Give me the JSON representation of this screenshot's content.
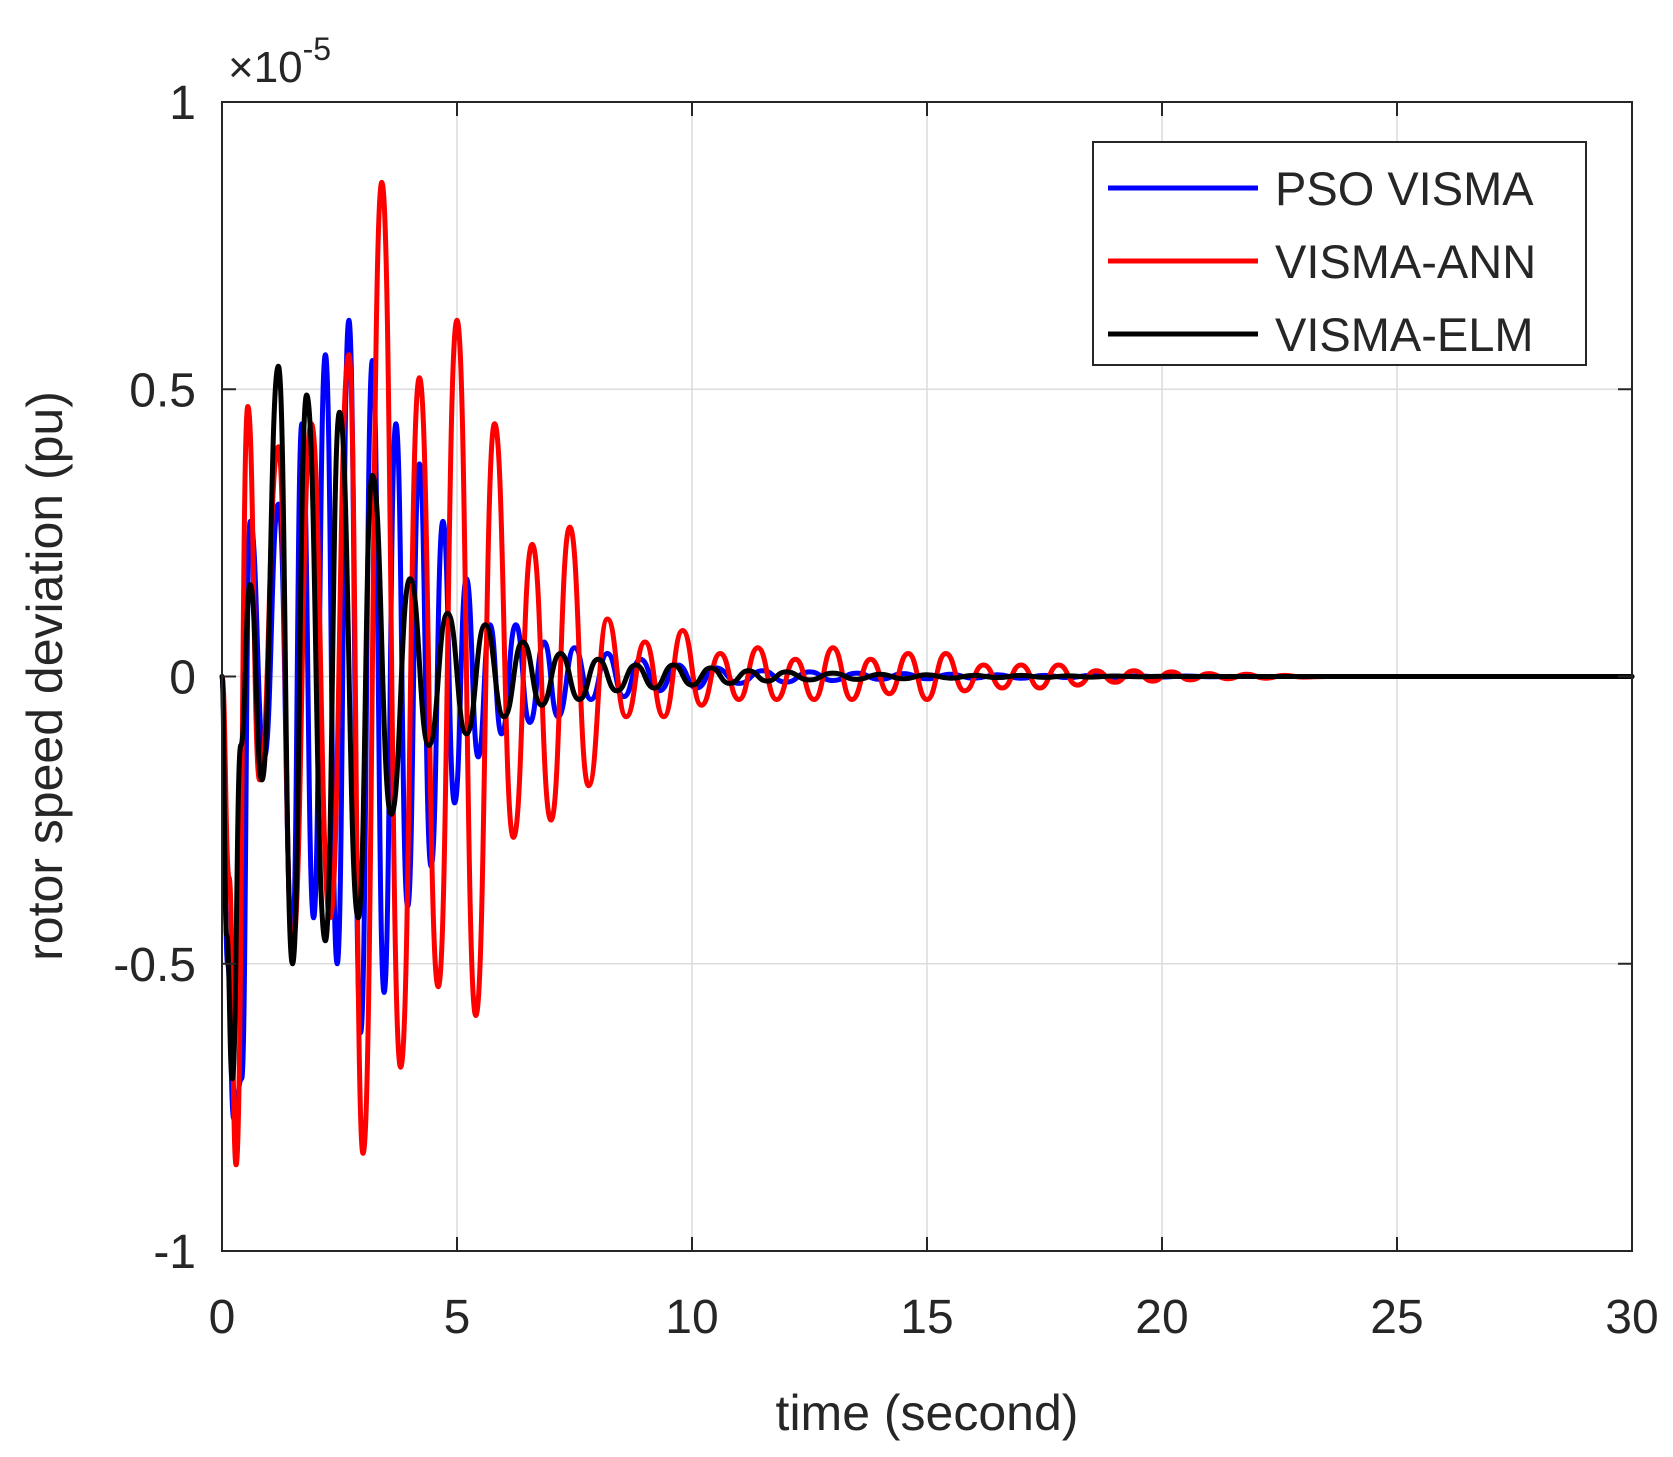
{
  "chart_data": {
    "type": "line",
    "title": "",
    "xlabel": "time (second)",
    "ylabel": "rotor speed deviation (pu)",
    "xlim": [
      0,
      30
    ],
    "ylim": [
      -1,
      1
    ],
    "y_exponent_label": "×10",
    "y_exponent_power": "-5",
    "grid": true,
    "legend_position": "top-right",
    "xticks": [
      {
        "value": 0,
        "label": "0"
      },
      {
        "value": 5,
        "label": "5"
      },
      {
        "value": 10,
        "label": "10"
      },
      {
        "value": 15,
        "label": "15"
      },
      {
        "value": 20,
        "label": "20"
      },
      {
        "value": 25,
        "label": "25"
      },
      {
        "value": 30,
        "label": "30"
      }
    ],
    "yticks": [
      {
        "value": -1,
        "label": "-1"
      },
      {
        "value": -0.5,
        "label": "-0.5"
      },
      {
        "value": 0,
        "label": "0"
      },
      {
        "value": 0.5,
        "label": "0.5"
      },
      {
        "value": 1,
        "label": "1"
      }
    ],
    "series": [
      {
        "name": "PSO VISMA",
        "color": "#0000ff",
        "x": [
          0,
          0.12,
          0.25,
          0.42,
          0.6,
          0.9,
          1.2,
          1.5,
          1.7,
          1.95,
          2.2,
          2.45,
          2.7,
          2.95,
          3.2,
          3.45,
          3.7,
          3.95,
          4.2,
          4.45,
          4.7,
          4.95,
          5.2,
          5.45,
          5.7,
          5.95,
          6.25,
          6.55,
          6.85,
          7.15,
          7.5,
          7.85,
          8.2,
          8.55,
          8.9,
          9.3,
          9.7,
          10.1,
          10.5,
          11,
          11.5,
          12,
          12.5,
          13,
          13.5,
          14,
          14.5,
          15,
          15.5,
          16,
          16.5,
          17,
          17.5,
          18,
          18.5,
          19,
          19.5,
          20,
          20.5,
          21,
          21.5,
          30
        ],
        "values": [
          0,
          -0.5,
          -0.77,
          -0.7,
          0.27,
          -0.14,
          0.3,
          -0.45,
          0.44,
          -0.42,
          0.56,
          -0.5,
          0.62,
          -0.62,
          0.55,
          -0.55,
          0.44,
          -0.4,
          0.37,
          -0.33,
          0.27,
          -0.22,
          0.17,
          -0.14,
          0.09,
          -0.1,
          0.09,
          -0.08,
          0.06,
          -0.07,
          0.05,
          -0.04,
          0.04,
          -0.035,
          0.03,
          -0.025,
          0.02,
          -0.02,
          0.015,
          -0.012,
          0.01,
          -0.01,
          0.008,
          -0.007,
          0.006,
          -0.005,
          0.005,
          -0.004,
          0.004,
          -0.003,
          0.003,
          -0.003,
          0.002,
          -0.002,
          0.002,
          -0.0015,
          0.001,
          -0.001,
          0.0008,
          -0.0005,
          0,
          0
        ]
      },
      {
        "name": "VISMA-ANN",
        "color": "#ff0000",
        "x": [
          0,
          0.15,
          0.3,
          0.55,
          0.8,
          1.2,
          1.5,
          1.9,
          2.3,
          2.7,
          3.0,
          3.4,
          3.8,
          4.2,
          4.6,
          5.0,
          5.4,
          5.8,
          6.2,
          6.6,
          7.0,
          7.4,
          7.8,
          8.2,
          8.6,
          9.0,
          9.4,
          9.8,
          10.2,
          10.6,
          11.0,
          11.4,
          11.8,
          12.2,
          12.6,
          13.0,
          13.4,
          13.8,
          14.2,
          14.6,
          15.0,
          15.4,
          15.8,
          16.2,
          16.6,
          17.0,
          17.4,
          17.8,
          18.2,
          18.6,
          19.0,
          19.4,
          19.8,
          20.2,
          20.6,
          21.0,
          21.4,
          21.8,
          22.2,
          22.6,
          23.0,
          23.5,
          30
        ],
        "values": [
          0,
          -0.35,
          -0.85,
          0.47,
          -0.18,
          0.4,
          -0.47,
          0.44,
          -0.42,
          0.56,
          -0.83,
          0.86,
          -0.68,
          0.52,
          -0.54,
          0.62,
          -0.59,
          0.44,
          -0.28,
          0.23,
          -0.25,
          0.26,
          -0.19,
          0.1,
          -0.07,
          0.06,
          -0.07,
          0.08,
          -0.05,
          0.04,
          -0.04,
          0.05,
          -0.04,
          0.03,
          -0.04,
          0.05,
          -0.04,
          0.03,
          -0.03,
          0.04,
          -0.04,
          0.04,
          -0.025,
          0.02,
          -0.02,
          0.02,
          -0.02,
          0.02,
          -0.015,
          0.01,
          -0.01,
          0.01,
          -0.008,
          0.008,
          -0.006,
          0.005,
          -0.004,
          0.004,
          -0.003,
          0.002,
          -0.001,
          0,
          0
        ]
      },
      {
        "name": "VISMA-ELM",
        "color": "#000000",
        "x": [
          0,
          0.1,
          0.22,
          0.4,
          0.6,
          0.85,
          1.2,
          1.5,
          1.8,
          2.2,
          2.5,
          2.9,
          3.2,
          3.6,
          4.0,
          4.4,
          4.8,
          5.2,
          5.6,
          6.0,
          6.4,
          6.8,
          7.2,
          7.6,
          8.0,
          8.4,
          8.8,
          9.2,
          9.6,
          10.0,
          10.4,
          10.8,
          11.2,
          11.6,
          12.0,
          12.5,
          13.0,
          13.5,
          14.0,
          14.5,
          15.0,
          15.5,
          16.0,
          16.5,
          17.0,
          17.5,
          18.0,
          18.5,
          19.0,
          19.5,
          20.0,
          20.5,
          21.0,
          30
        ],
        "values": [
          0,
          -0.45,
          -0.7,
          -0.12,
          0.16,
          -0.18,
          0.54,
          -0.5,
          0.49,
          -0.46,
          0.46,
          -0.42,
          0.35,
          -0.24,
          0.17,
          -0.12,
          0.11,
          -0.1,
          0.09,
          -0.07,
          0.06,
          -0.05,
          0.04,
          -0.04,
          0.03,
          -0.025,
          0.02,
          -0.02,
          0.02,
          -0.015,
          0.015,
          -0.012,
          0.01,
          -0.008,
          0.008,
          -0.006,
          0.006,
          -0.005,
          0.004,
          -0.004,
          0.003,
          -0.003,
          0.002,
          -0.002,
          0.002,
          -0.0015,
          0.001,
          -0.001,
          0.0008,
          -0.0005,
          0.0003,
          0,
          0,
          0
        ]
      }
    ]
  }
}
